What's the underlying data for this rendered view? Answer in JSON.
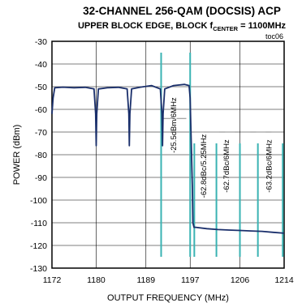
{
  "chart_data": {
    "type": "line",
    "title": "32-CHANNEL 256-QAM (DOCSIS) ACP",
    "subtitle": {
      "prefix": "UPPER BLOCK EDGE, BLOCK f",
      "subscript": "CENTER",
      "suffix": " = 1100MHz"
    },
    "tag": "toc06",
    "xlabel": "OUTPUT FREQUENCY (MHz)",
    "ylabel": "POWER (dBm)",
    "xlim": [
      1172,
      1214
    ],
    "ylim": [
      -130,
      -30
    ],
    "xticks": [
      1172,
      1180,
      1189,
      1197,
      1206,
      1214
    ],
    "yticks": [
      -30,
      -40,
      -50,
      -60,
      -70,
      -80,
      -90,
      -100,
      -110,
      -120,
      -130
    ],
    "grid": true,
    "series": [
      {
        "color": "#1a2f6b",
        "x": [
          1172.0,
          1172.2,
          1172.5,
          1174,
          1176,
          1178,
          1179.6,
          1179.9,
          1180.0,
          1180.1,
          1180.4,
          1182,
          1184,
          1185.6,
          1185.9,
          1186.0,
          1186.1,
          1186.4,
          1188,
          1190,
          1191.6,
          1191.9,
          1192.0,
          1192.1,
          1192.4,
          1194,
          1196,
          1196.8,
          1197.0,
          1197.2,
          1197.4,
          1197.5,
          1197.7,
          1198.0,
          1200,
          1202,
          1204,
          1206,
          1208,
          1210,
          1212,
          1214
        ],
        "y": [
          -62,
          -55,
          -50.5,
          -50.2,
          -50.5,
          -50.3,
          -51,
          -62,
          -76,
          -62,
          -51,
          -50.5,
          -50.3,
          -51,
          -62,
          -76,
          -62,
          -51,
          -50.2,
          -49.5,
          -51,
          -62,
          -76,
          -62,
          -51,
          -49.5,
          -49,
          -49.5,
          -55,
          -75,
          -95,
          -110,
          -112,
          -112,
          -112.6,
          -113,
          -113.2,
          -113.4,
          -113.6,
          -113.8,
          -114.2,
          -114.6
        ]
      }
    ],
    "markers": {
      "color": "#3ab3b3",
      "lines": [
        {
          "x": 1191.75,
          "y_top": -35,
          "y_bottom": -125
        },
        {
          "x": 1197.0,
          "y_top": -35,
          "y_bottom": -125
        },
        {
          "x": 1197.75,
          "y_top": -75,
          "y_bottom": -125
        },
        {
          "x": 1201.75,
          "y_top": -75,
          "y_bottom": -125
        },
        {
          "x": 1206.0,
          "y_top": -75,
          "y_bottom": -125
        },
        {
          "x": 1209.25,
          "y_top": -75,
          "y_bottom": -125
        },
        {
          "x": 1213.75,
          "y_top": -75,
          "y_bottom": -125
        }
      ]
    },
    "limit_segments": [
      {
        "x0": 1191.75,
        "x1": 1197.0,
        "y": -64
      },
      {
        "x0": 1197.75,
        "x1": 1214.0,
        "y": -70
      }
    ],
    "annotations": [
      {
        "text": "-25.5dBm/6MHz",
        "x": 1194.5,
        "y": -67
      },
      {
        "text": "-62.8dBc/5.25MHz",
        "x": 1199.9,
        "y": -85
      },
      {
        "text": "-62.7dBc/6MHz",
        "x": 1204.0,
        "y": -85
      },
      {
        "text": "-63.2dBc/6MHz",
        "x": 1211.7,
        "y": -85
      }
    ]
  }
}
